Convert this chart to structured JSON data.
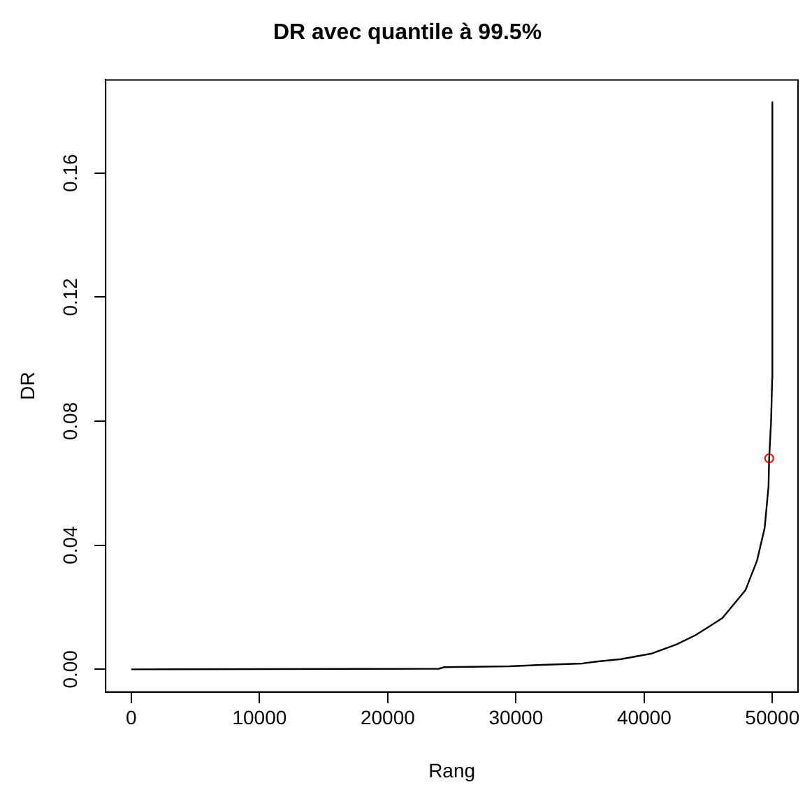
{
  "chart_data": {
    "type": "line",
    "title": "DR avec quantile à 99.5%",
    "xlabel": "Rang",
    "ylabel": "DR",
    "xlim": [
      -2000,
      52000
    ],
    "ylim": [
      -0.0073,
      0.19
    ],
    "xticks": [
      0,
      10000,
      20000,
      30000,
      40000,
      50000
    ],
    "yticks": [
      {
        "value": 0,
        "label": "0.00"
      },
      {
        "value": 0.04,
        "label": "0.04"
      },
      {
        "value": 0.08,
        "label": "0.08"
      },
      {
        "value": 0.12,
        "label": "0.12"
      },
      {
        "value": 0.16,
        "label": "0.16"
      }
    ],
    "series": [
      {
        "color": "#000000",
        "marker": "none",
        "x": [
          1,
          24000,
          24400,
          29500,
          32400,
          35200,
          36300,
          38200,
          40600,
          42500,
          44000,
          46100,
          47900,
          48800,
          49400,
          49700,
          49750,
          49900,
          49990,
          50000
        ],
        "values": [
          0,
          0.0002,
          0.0007,
          0.001,
          0.0015,
          0.0019,
          0.0025,
          0.0033,
          0.0051,
          0.008,
          0.011,
          0.0165,
          0.0255,
          0.035,
          0.0456,
          0.059,
          0.068,
          0.08,
          0.094,
          0.183
        ]
      },
      {
        "type": "scatter",
        "color": "#ff0000",
        "marker": "circle",
        "x": [
          49750
        ],
        "values": [
          0.068
        ]
      }
    ]
  }
}
